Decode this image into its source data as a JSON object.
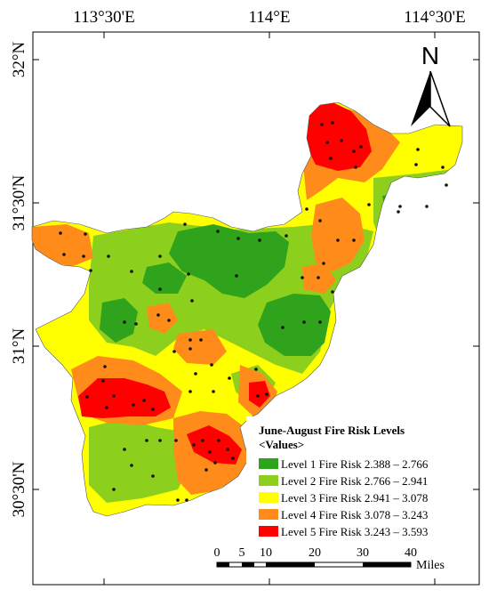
{
  "map": {
    "top_ticks": [
      "113°30'E",
      "114°E",
      "114°30'E"
    ],
    "left_ticks": [
      "32°N",
      "31°30'N",
      "31°N",
      "30°30'N"
    ],
    "north_label": "N"
  },
  "legend": {
    "title": "June-August Fire Risk Levels",
    "subtitle": "<Values>",
    "items": [
      {
        "label": "Level 1 Fire Risk 2.388 – 2.766",
        "color": "#2ea31b"
      },
      {
        "label": "Level 2 Fire Risk 2.766 – 2.941",
        "color": "#8ccf1c"
      },
      {
        "label": "Level 3 Fire Risk 2.941 – 3.078",
        "color": "#ffff00"
      },
      {
        "label": "Level 4 Fire Risk 3.078 – 3.243",
        "color": "#ff8c1a"
      },
      {
        "label": "Level 5 Fire Risk 3.243 – 3.593",
        "color": "#ff0000"
      }
    ]
  },
  "scale_bar": {
    "labels": [
      "0",
      "5",
      "10",
      "20",
      "30",
      "40"
    ],
    "unit": "Miles"
  }
}
